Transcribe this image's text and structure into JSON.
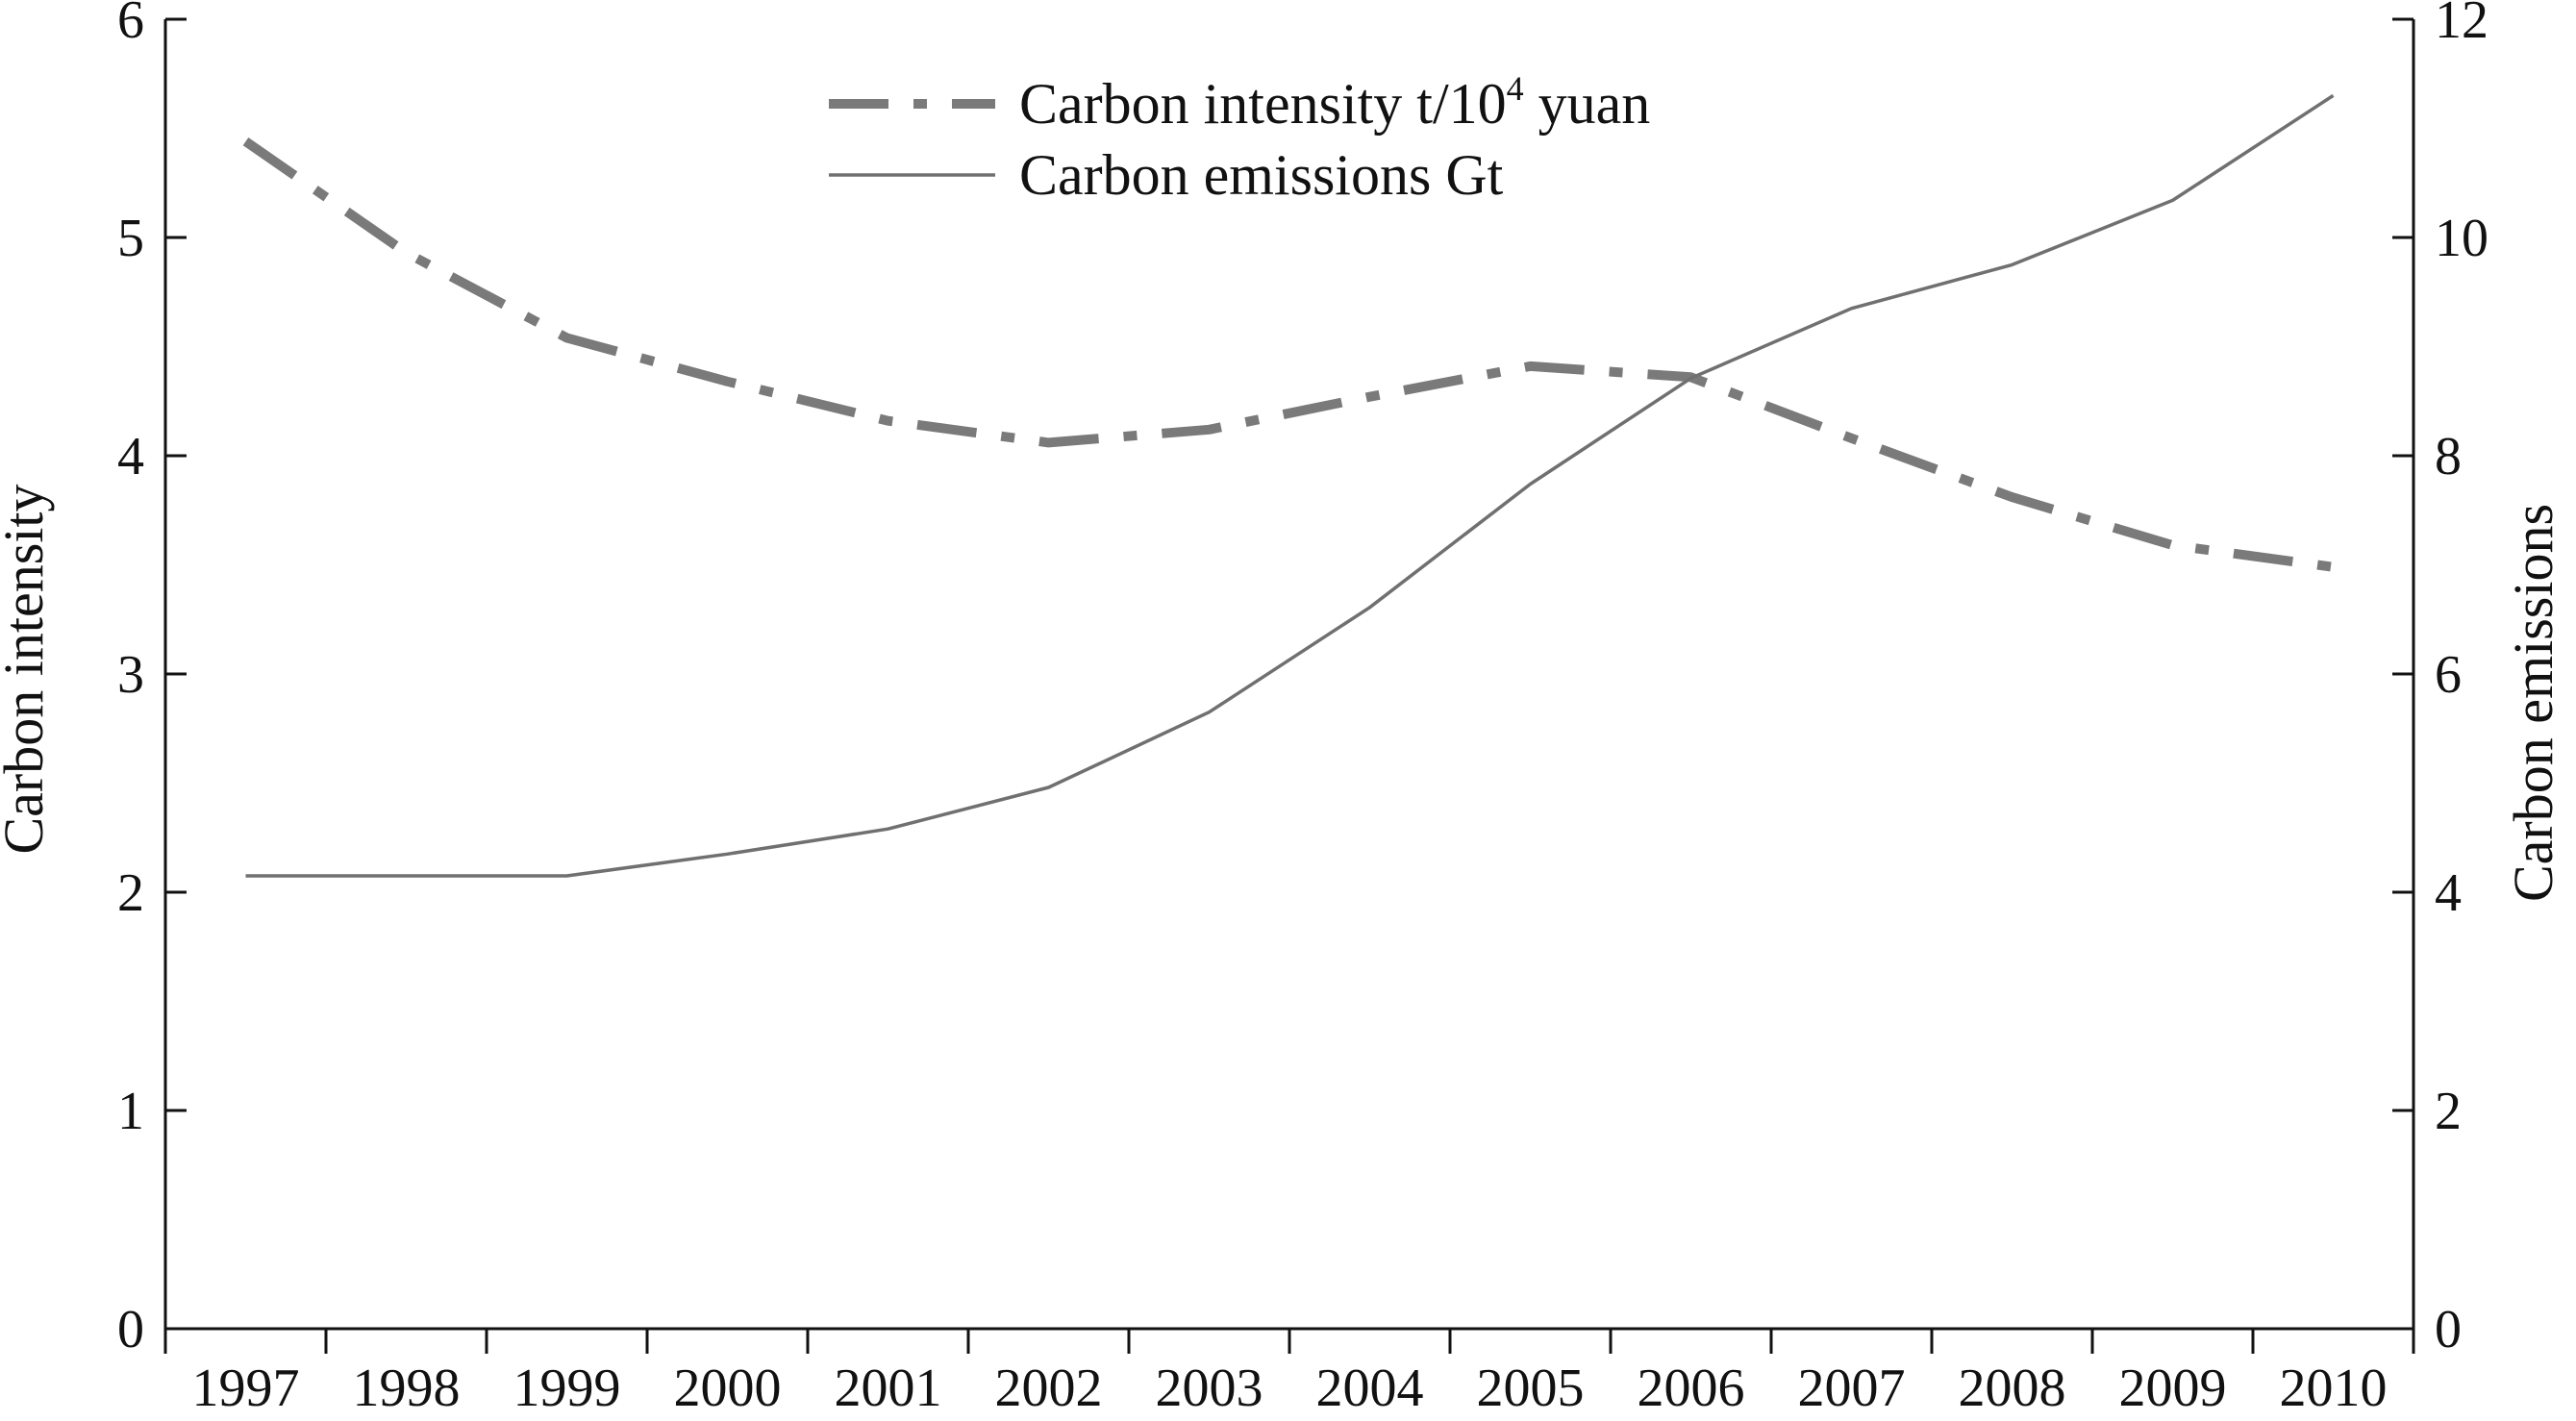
{
  "chart_data": {
    "type": "line",
    "title": "",
    "x": [
      "1997",
      "1998",
      "1999",
      "2000",
      "2001",
      "2002",
      "2003",
      "2004",
      "2005",
      "2006",
      "2007",
      "2008",
      "2009",
      "2010"
    ],
    "y_left": {
      "label": "Carbon intensity",
      "range": [
        0,
        6
      ],
      "ticks": [
        "0",
        "1",
        "2",
        "3",
        "4",
        "5",
        "6"
      ]
    },
    "y_right": {
      "label": "Carbon emissions",
      "range": [
        0,
        12
      ],
      "ticks": [
        "0",
        "2",
        "4",
        "6",
        "8",
        "10",
        "12"
      ]
    },
    "legend_position": "top-center",
    "grid": false,
    "series": [
      {
        "name": "Carbon intensity t/10",
        "name_sup": "4",
        "name_suffix": " yuan",
        "axis": "left",
        "style": "dash-dot",
        "color": "#7a7a7a",
        "values": [
          5.44,
          4.93,
          4.54,
          4.34,
          4.16,
          4.06,
          4.12,
          4.27,
          4.41,
          4.36,
          4.08,
          3.81,
          3.59,
          3.49
        ]
      },
      {
        "name": "Carbon emissions Gt",
        "axis": "right",
        "style": "solid",
        "color": "#707070",
        "values": [
          4.15,
          4.15,
          4.15,
          4.35,
          4.58,
          4.96,
          5.65,
          6.61,
          7.74,
          8.71,
          9.35,
          9.75,
          10.34,
          11.3
        ]
      }
    ]
  }
}
